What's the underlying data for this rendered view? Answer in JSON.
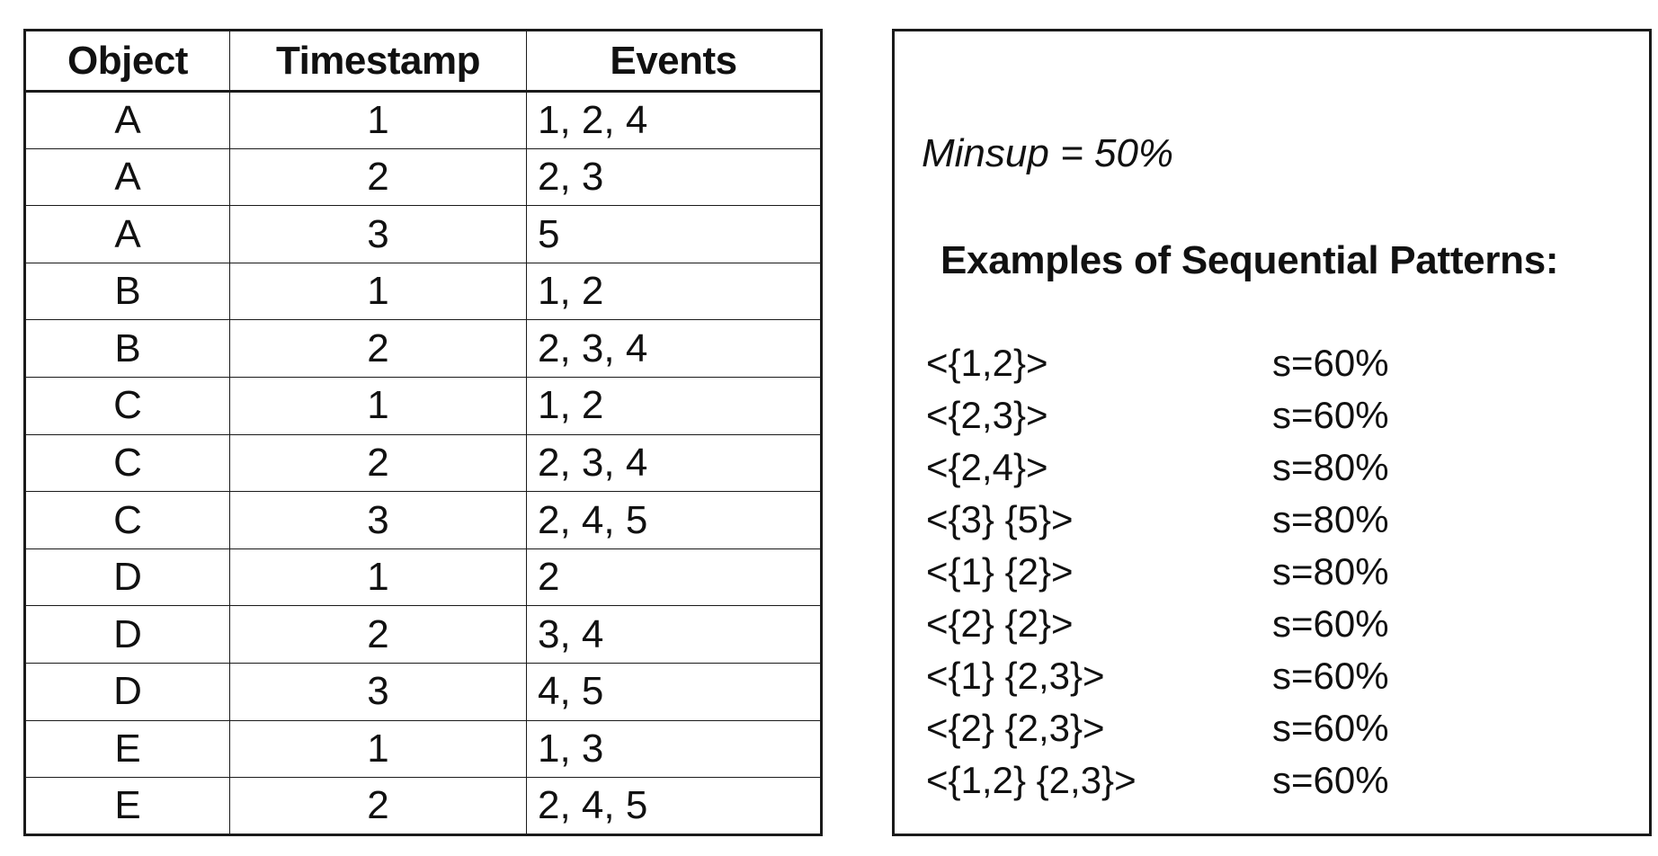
{
  "table": {
    "headers": {
      "object": "Object",
      "timestamp": "Timestamp",
      "events": "Events"
    },
    "rows": [
      {
        "object": "A",
        "timestamp": "1",
        "events": "1, 2, 4"
      },
      {
        "object": "A",
        "timestamp": "2",
        "events": "2, 3"
      },
      {
        "object": "A",
        "timestamp": "3",
        "events": "5"
      },
      {
        "object": "B",
        "timestamp": "1",
        "events": "1, 2"
      },
      {
        "object": "B",
        "timestamp": "2",
        "events": "2, 3, 4"
      },
      {
        "object": "C",
        "timestamp": "1",
        "events": "1, 2"
      },
      {
        "object": "C",
        "timestamp": "2",
        "events": "2, 3, 4"
      },
      {
        "object": "C",
        "timestamp": "3",
        "events": "2, 4, 5"
      },
      {
        "object": "D",
        "timestamp": "1",
        "events": "2"
      },
      {
        "object": "D",
        "timestamp": "2",
        "events": "3, 4"
      },
      {
        "object": "D",
        "timestamp": "3",
        "events": "4, 5"
      },
      {
        "object": "E",
        "timestamp": "1",
        "events": "1, 3"
      },
      {
        "object": "E",
        "timestamp": "2",
        "events": "2, 4, 5"
      }
    ]
  },
  "panel": {
    "minsup": "Minsup = 50%",
    "heading": "Examples of Sequential Patterns:",
    "patterns": [
      {
        "sequence": "<{1,2}>",
        "support": "s=60%"
      },
      {
        "sequence": "<{2,3}>",
        "support": "s=60%"
      },
      {
        "sequence": "<{2,4}>",
        "support": "s=80%"
      },
      {
        "sequence": "<{3} {5}>",
        "support": "s=80%"
      },
      {
        "sequence": "<{1} {2}>",
        "support": "s=80%"
      },
      {
        "sequence": "<{2} {2}>",
        "support": "s=60%"
      },
      {
        "sequence": "<{1} {2,3}>",
        "support": "s=60%"
      },
      {
        "sequence": "<{2} {2,3}>",
        "support": "s=60%"
      },
      {
        "sequence": "<{1,2} {2,3}>",
        "support": "s=60%"
      }
    ]
  }
}
